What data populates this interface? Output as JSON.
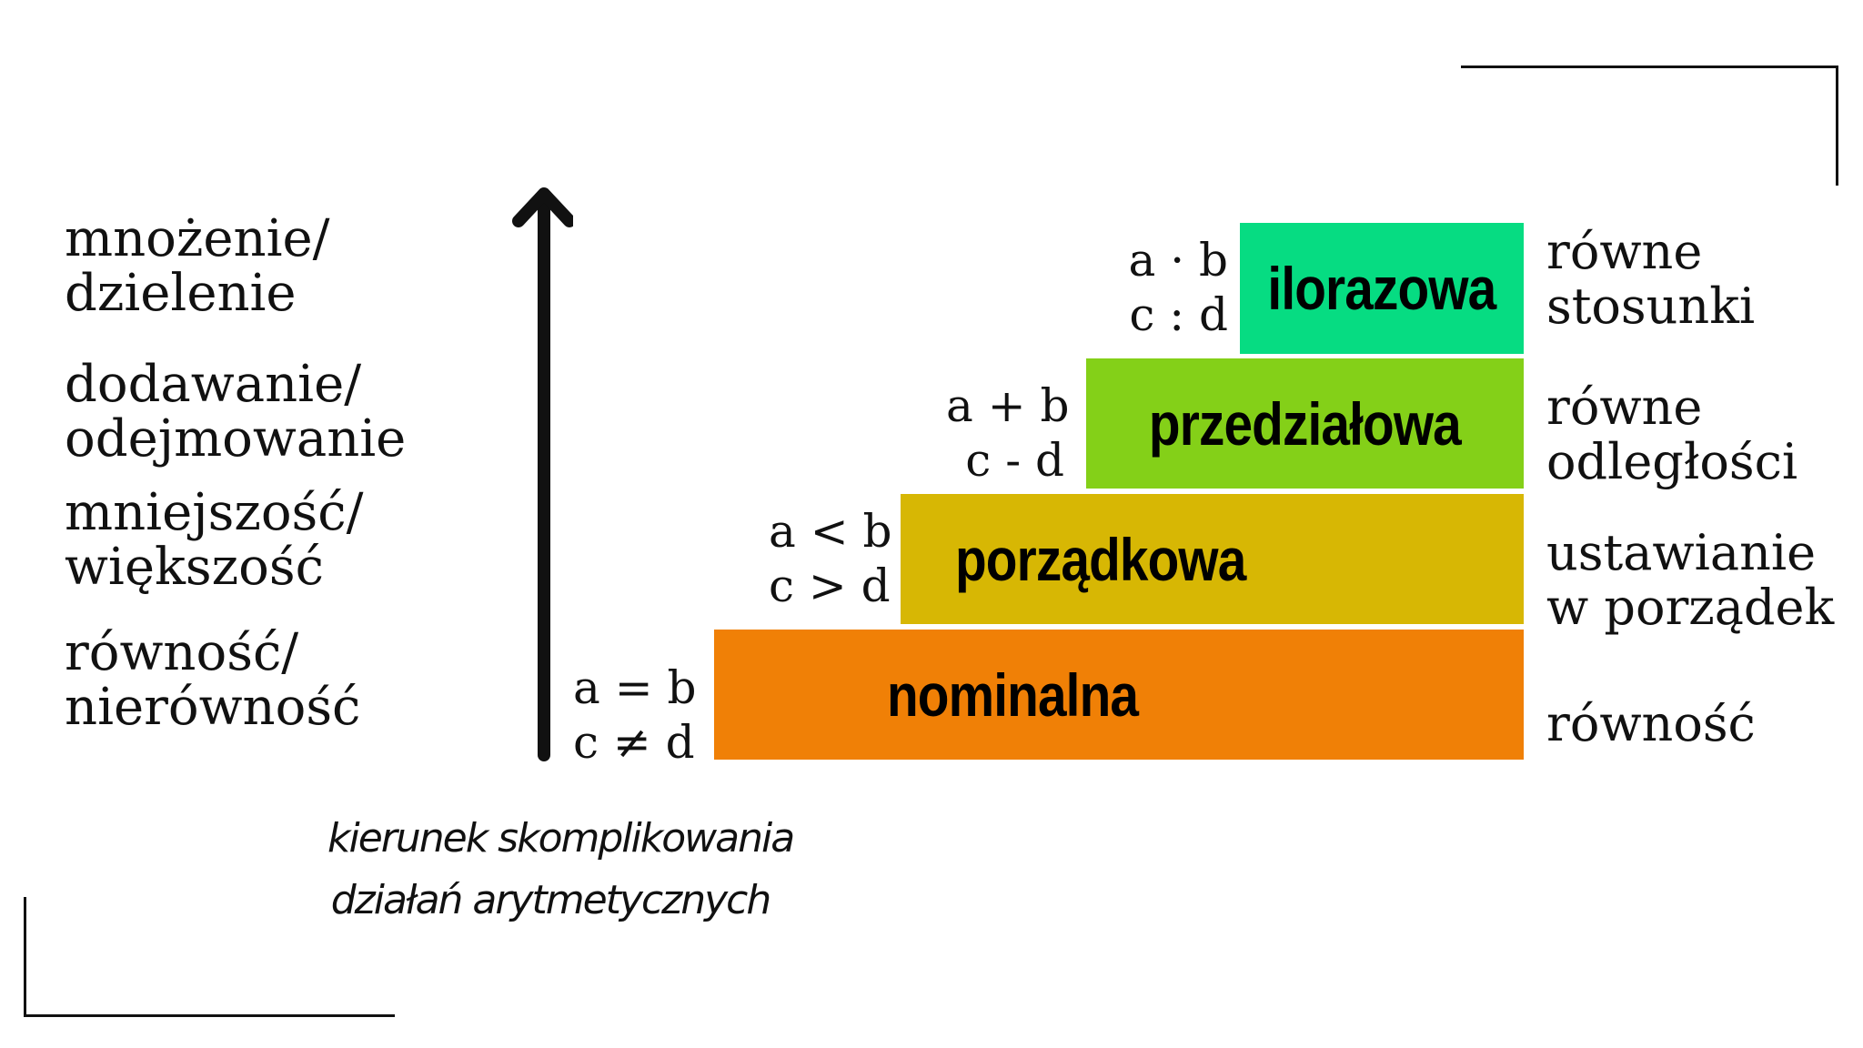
{
  "colors": {
    "ilorazowa": "#06dc82",
    "przedzialowa": "#84d018",
    "porzadkowa": "#d7b704",
    "nominalna": "#f08006",
    "ink": "#111111"
  },
  "operations": [
    {
      "line1": "mnożenie/",
      "line2": "dzielenie"
    },
    {
      "line1": "dodawanie/",
      "line2": "odejmowanie"
    },
    {
      "line1": "mniejszość/",
      "line2": "większość"
    },
    {
      "line1": "równość/",
      "line2": "nierówność"
    }
  ],
  "arrow": {
    "icon": "arrow-up-icon"
  },
  "caption": {
    "line1": "kierunek skomplikowania",
    "line2": "działań arytmetycznych"
  },
  "scales": [
    {
      "name": "ilorazowa",
      "formula1": "a · b",
      "formula2": "c : d",
      "property1": "równe",
      "property2": "stosunki"
    },
    {
      "name": "przedziałowa",
      "formula1": "a + b",
      "formula2": "c - d",
      "property1": "równe",
      "property2": "odległości"
    },
    {
      "name": "porządkowa",
      "formula1": "a < b",
      "formula2": "c > d",
      "property1": "ustawianie",
      "property2": "w porządek"
    },
    {
      "name": "nominalna",
      "formula1": "a = b",
      "formula2": "c ≠ d",
      "property1": "równość",
      "property2": ""
    }
  ]
}
